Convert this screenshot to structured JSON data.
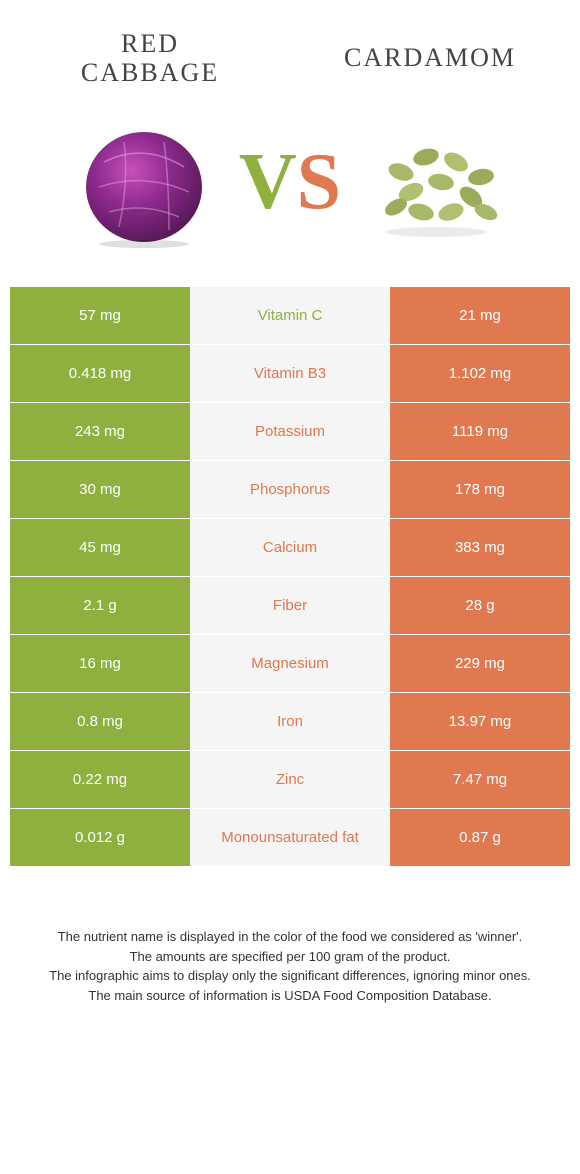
{
  "colors": {
    "green": "#8fb03e",
    "orange": "#e07850",
    "mid_bg": "#f5f5f5"
  },
  "foods": {
    "left": {
      "name": "Red cabbage",
      "color": "#8fb03e"
    },
    "right": {
      "name": "Cardamom",
      "color": "#e07850"
    }
  },
  "vs": {
    "v": "V",
    "s": "S"
  },
  "rows": [
    {
      "nutrient": "Vitamin C",
      "left": "57 mg",
      "right": "21 mg",
      "winner": "left"
    },
    {
      "nutrient": "Vitamin B3",
      "left": "0.418 mg",
      "right": "1.102 mg",
      "winner": "right"
    },
    {
      "nutrient": "Potassium",
      "left": "243 mg",
      "right": "1119 mg",
      "winner": "right"
    },
    {
      "nutrient": "Phosphorus",
      "left": "30 mg",
      "right": "178 mg",
      "winner": "right"
    },
    {
      "nutrient": "Calcium",
      "left": "45 mg",
      "right": "383 mg",
      "winner": "right"
    },
    {
      "nutrient": "Fiber",
      "left": "2.1 g",
      "right": "28 g",
      "winner": "right"
    },
    {
      "nutrient": "Magnesium",
      "left": "16 mg",
      "right": "229 mg",
      "winner": "right"
    },
    {
      "nutrient": "Iron",
      "left": "0.8 mg",
      "right": "13.97 mg",
      "winner": "right"
    },
    {
      "nutrient": "Zinc",
      "left": "0.22 mg",
      "right": "7.47 mg",
      "winner": "right"
    },
    {
      "nutrient": "Monounsaturated fat",
      "left": "0.012 g",
      "right": "0.87 g",
      "winner": "right"
    }
  ],
  "footer": {
    "line1": "The nutrient name is displayed in the color of the food we considered as 'winner'.",
    "line2": "The amounts are specified per 100 gram of the product.",
    "line3": "The infographic aims to display only the significant differences, ignoring minor ones.",
    "line4": "The main source of information is USDA Food Composition Database."
  }
}
